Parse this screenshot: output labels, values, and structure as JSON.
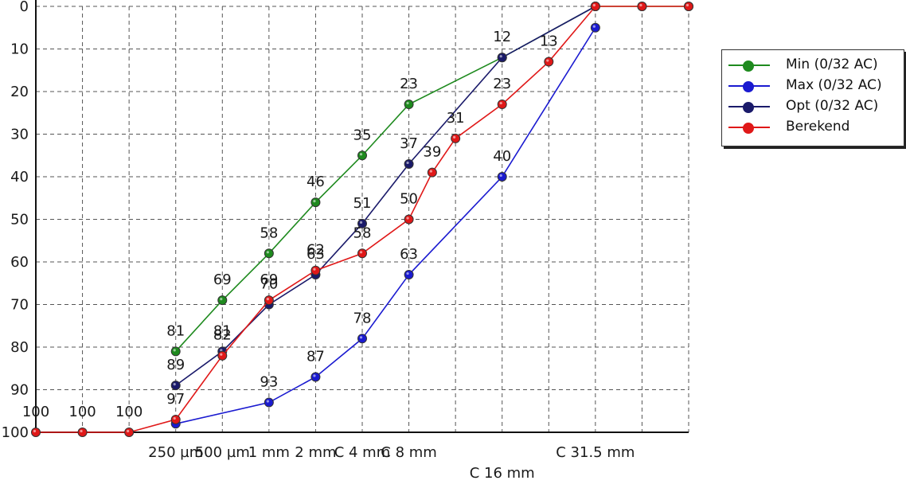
{
  "chart_data": {
    "type": "line",
    "categories": [
      "",
      "",
      "",
      "250 µm",
      "500 µm",
      "1 mm",
      "2 mm",
      "C 4 mm",
      "C 8 mm",
      "",
      "C 16 mm",
      "",
      "C 31.5 mm",
      "",
      ""
    ],
    "y_ticks": [
      0,
      10,
      20,
      30,
      40,
      50,
      60,
      70,
      80,
      90,
      100
    ],
    "ylim": [
      0,
      100
    ],
    "y_inverted": true,
    "grid": true,
    "legend_position": "right",
    "series": [
      {
        "name": "Min (0/32 AC)",
        "color": "#1e8a1e",
        "points": [
          [
            3,
            81
          ],
          [
            4,
            69
          ],
          [
            5,
            58
          ],
          [
            6,
            46
          ],
          [
            7,
            35
          ],
          [
            8,
            23
          ],
          [
            10,
            12
          ],
          [
            12,
            0
          ],
          [
            13,
            0
          ],
          [
            14,
            0
          ]
        ],
        "labels": [
          "81",
          "69",
          "58",
          "46",
          "35",
          "23",
          "12",
          "",
          "",
          ""
        ]
      },
      {
        "name": "Max (0/32 AC)",
        "color": "#1a1ad0",
        "points": [
          [
            3,
            98
          ],
          [
            5,
            93
          ],
          [
            6,
            87
          ],
          [
            7,
            78
          ],
          [
            8,
            63
          ],
          [
            10,
            40
          ],
          [
            12,
            5
          ]
        ],
        "labels": [
          "",
          "93",
          "87",
          "78",
          "63",
          "40",
          ""
        ]
      },
      {
        "name": "Opt (0/32 AC)",
        "color": "#1a1a6a",
        "points": [
          [
            3,
            89
          ],
          [
            4,
            81
          ],
          [
            5,
            70
          ],
          [
            6,
            63
          ],
          [
            7,
            51
          ],
          [
            8,
            37
          ],
          [
            10,
            12
          ],
          [
            12,
            0
          ]
        ],
        "labels": [
          "89",
          "81",
          "70",
          "63",
          "51",
          "37",
          "",
          ""
        ]
      },
      {
        "name": "Berekend",
        "color": "#e01818",
        "points": [
          [
            0,
            100
          ],
          [
            1,
            100
          ],
          [
            2,
            100
          ],
          [
            3,
            97
          ],
          [
            4,
            82
          ],
          [
            5,
            69
          ],
          [
            6,
            62
          ],
          [
            7,
            58
          ],
          [
            8,
            50
          ],
          [
            8.5,
            39
          ],
          [
            9,
            31
          ],
          [
            10,
            23
          ],
          [
            11,
            13
          ],
          [
            12,
            0
          ],
          [
            13,
            0
          ],
          [
            14,
            0
          ]
        ],
        "labels": [
          "100",
          "100",
          "100",
          "97",
          "82",
          "69",
          "62",
          "58",
          "50",
          "39",
          "31",
          "23",
          "13",
          "",
          "",
          ""
        ]
      }
    ]
  },
  "legend": {
    "items": [
      {
        "label": "Min (0/32 AC)",
        "color": "#1e8a1e"
      },
      {
        "label": "Max (0/32 AC)",
        "color": "#1a1ad0"
      },
      {
        "label": "Opt (0/32 AC)",
        "color": "#1a1a6a"
      },
      {
        "label": "Berekend",
        "color": "#e01818"
      }
    ]
  }
}
